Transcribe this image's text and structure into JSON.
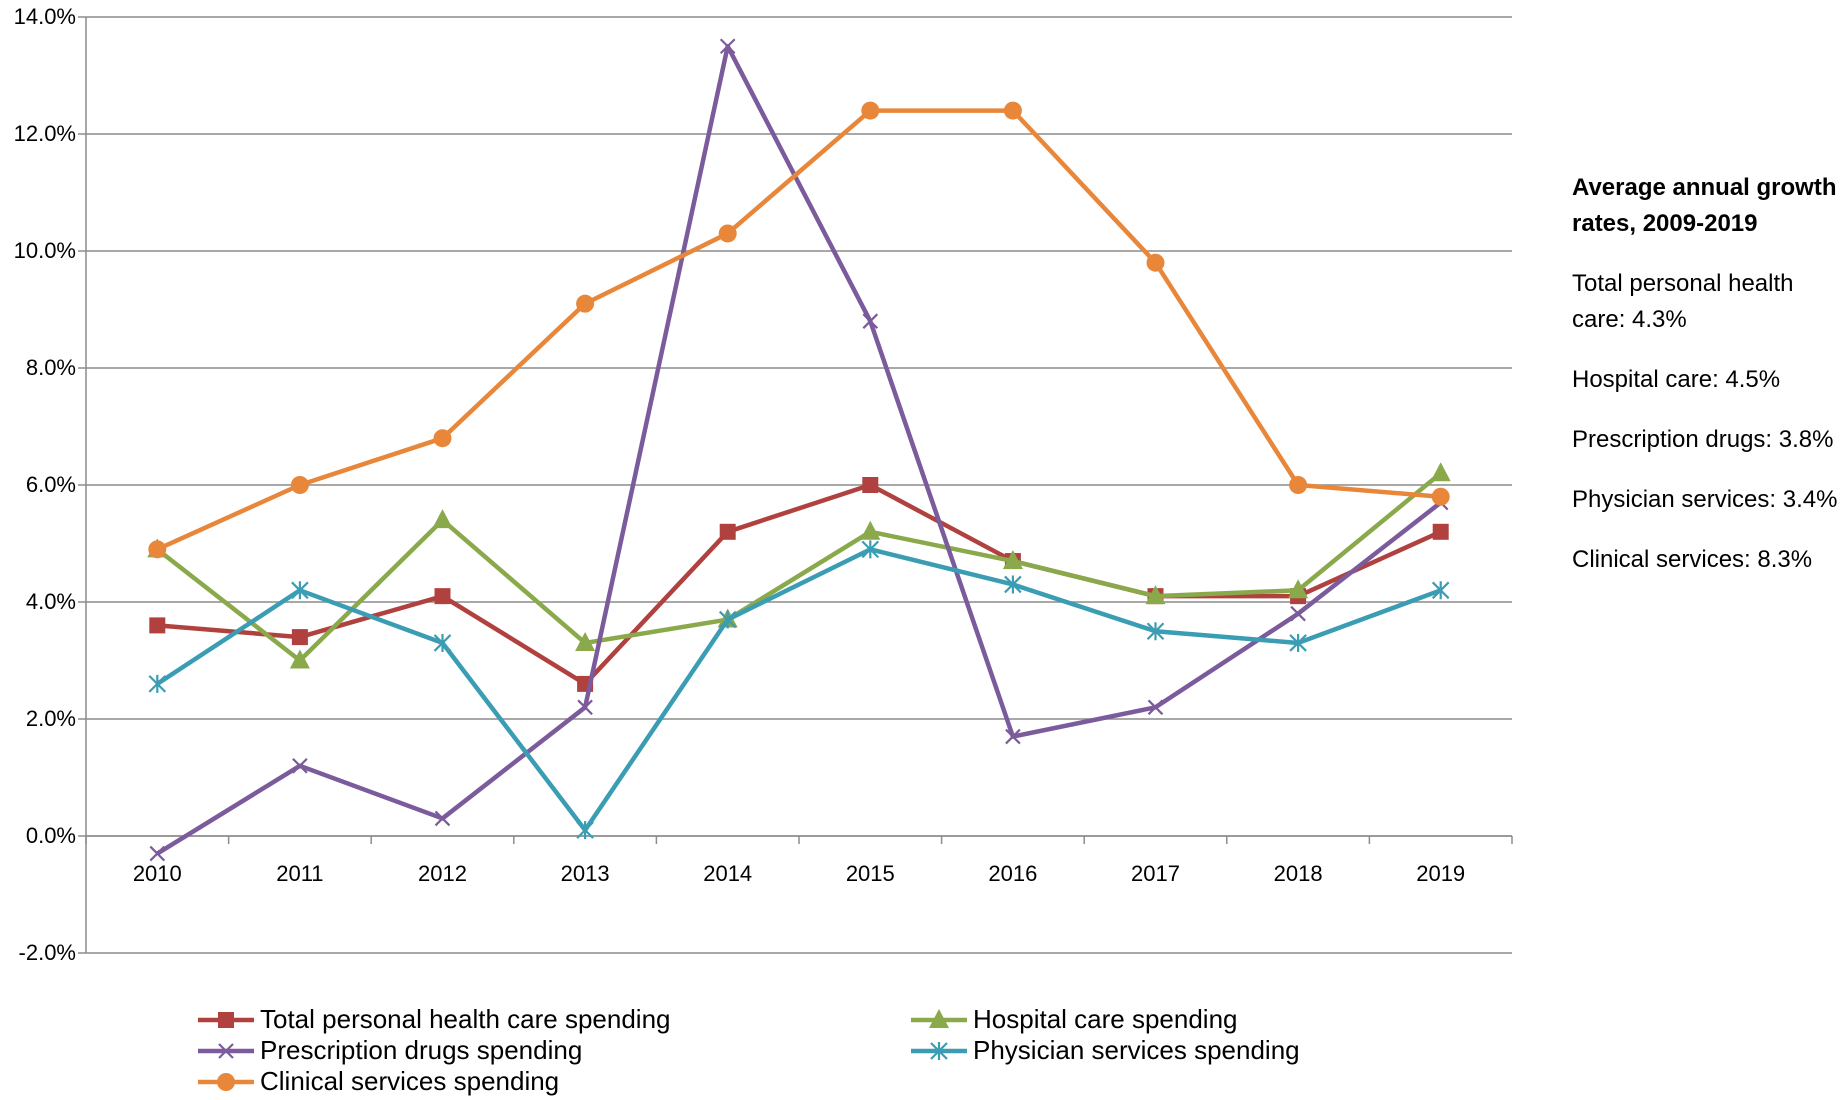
{
  "chart_data": {
    "type": "line",
    "categories": [
      "2010",
      "2011",
      "2012",
      "2013",
      "2014",
      "2015",
      "2016",
      "2017",
      "2018",
      "2019"
    ],
    "ylim": [
      -2,
      14
    ],
    "yticks": [
      "-2.0%",
      "0.0%",
      "2.0%",
      "4.0%",
      "6.0%",
      "8.0%",
      "10.0%",
      "12.0%",
      "14.0%"
    ],
    "grid": true,
    "legend_position": "bottom",
    "series": [
      {
        "name": "Total personal health care spending",
        "color": "#b0413e",
        "marker": "square",
        "values": [
          3.6,
          3.4,
          4.1,
          2.6,
          5.2,
          6.0,
          4.7,
          4.1,
          4.1,
          5.2
        ]
      },
      {
        "name": "Hospital care spending",
        "color": "#8aa94b",
        "marker": "triangle",
        "values": [
          4.9,
          3.0,
          5.4,
          3.3,
          3.7,
          5.2,
          4.7,
          4.1,
          4.2,
          6.2
        ]
      },
      {
        "name": "Prescription drugs spending",
        "color": "#7b5b9b",
        "marker": "x",
        "values": [
          -0.3,
          1.2,
          0.3,
          2.2,
          13.5,
          8.8,
          1.7,
          2.2,
          3.8,
          5.7
        ]
      },
      {
        "name": "Physician services spending",
        "color": "#3a9db3",
        "marker": "asterisk",
        "values": [
          2.6,
          4.2,
          3.3,
          0.1,
          3.7,
          4.9,
          4.3,
          3.5,
          3.3,
          4.2
        ]
      },
      {
        "name": "Clinical services spending",
        "color": "#e8873a",
        "marker": "circle",
        "values": [
          4.9,
          6.0,
          6.8,
          9.1,
          10.3,
          12.4,
          12.4,
          9.8,
          6.0,
          5.8
        ]
      }
    ]
  },
  "sidebar": {
    "title": "Average annual growth rates, 2009-2019",
    "stats": [
      "Total personal health care: 4.3%",
      "Hospital care: 4.5%",
      "Prescription drugs: 3.8%",
      "Physician services: 3.4%",
      "Clinical services: 8.3%"
    ]
  }
}
